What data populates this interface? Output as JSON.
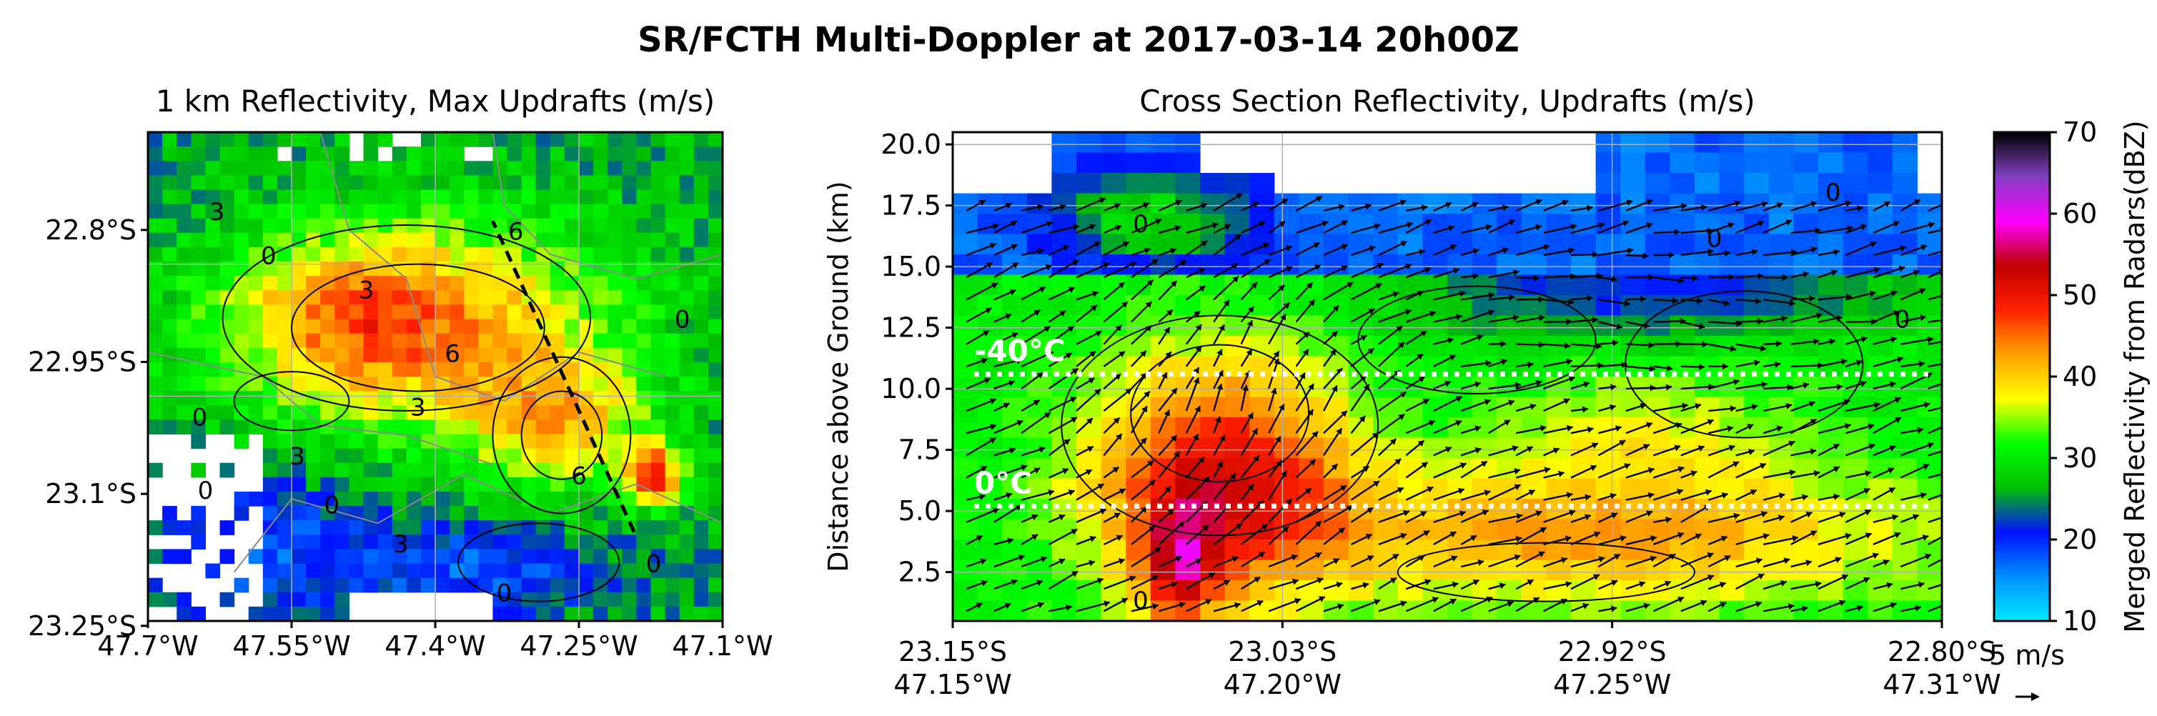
{
  "suptitle": "SR/FCTH Multi-Doppler at 2017-03-14 20h00Z",
  "colors": {
    "colormap": [
      "#00e8ff",
      "#0090ff",
      "#0010ff",
      "#00c000",
      "#00ff00",
      "#ffff00",
      "#ffa000",
      "#ff2000",
      "#c00000",
      "#ff00ff",
      "#8040c0",
      "#000000"
    ]
  },
  "chart_data": [
    {
      "type": "heatmap",
      "title": "1 km Reflectivity, Max Updrafts (m/s)",
      "xlabel": "",
      "ylabel": "",
      "x_tick_labels": [
        "47.7°W",
        "47.55°W",
        "47.4°W",
        "47.25°W",
        "47.1°W"
      ],
      "y_tick_labels": [
        "22.8°S",
        "22.95°S",
        "23.1°S",
        "23.25°S"
      ],
      "x_range": [
        -47.7,
        -47.05
      ],
      "y_range": [
        -23.25,
        -22.7
      ],
      "grid": true,
      "contour_labels": [
        "3",
        "3",
        "0",
        "6",
        "6",
        "3",
        "0",
        "0",
        "3",
        "6",
        "0",
        "0",
        "3",
        "0",
        "0"
      ],
      "cross_section_line": {
        "from": {
          "lon": -47.15,
          "lat": -23.15
        },
        "to": {
          "lon": -47.31,
          "lat": -22.8
        }
      }
    },
    {
      "type": "heatmap",
      "title": "Cross Section Reflectivity, Updrafts (m/s)",
      "xlabel": "",
      "ylabel": "Distance above Ground (km)",
      "x_tick_labels": [
        {
          "lat": "23.15°S",
          "lon": "47.15°W"
        },
        {
          "lat": "23.03°S",
          "lon": "47.20°W"
        },
        {
          "lat": "22.92°S",
          "lon": "47.25°W"
        },
        {
          "lat": "22.80°S",
          "lon": "47.31°W"
        }
      ],
      "y_ticks": [
        2.5,
        5.0,
        7.5,
        10.0,
        12.5,
        15.0,
        17.5,
        20.0
      ],
      "y_tick_labels": [
        "2.5",
        "5.0",
        "7.5",
        "10.0",
        "12.5",
        "15.0",
        "17.5",
        "20.0"
      ],
      "ylim": [
        0.5,
        20.5
      ],
      "grid": true,
      "isotherms": [
        {
          "label": "-40°C",
          "height_km": 10.6
        },
        {
          "label": "0°C",
          "height_km": 5.2
        }
      ],
      "contour_labels": [
        "0",
        "0",
        "0",
        "0",
        "0"
      ],
      "quiver_key": "5 m/s"
    }
  ],
  "colorbar": {
    "label": "Merged Reflectivity from Radars(dBZ)",
    "tick_labels": [
      "10",
      "20",
      "30",
      "40",
      "50",
      "60",
      "70"
    ],
    "range": [
      10,
      70
    ]
  }
}
